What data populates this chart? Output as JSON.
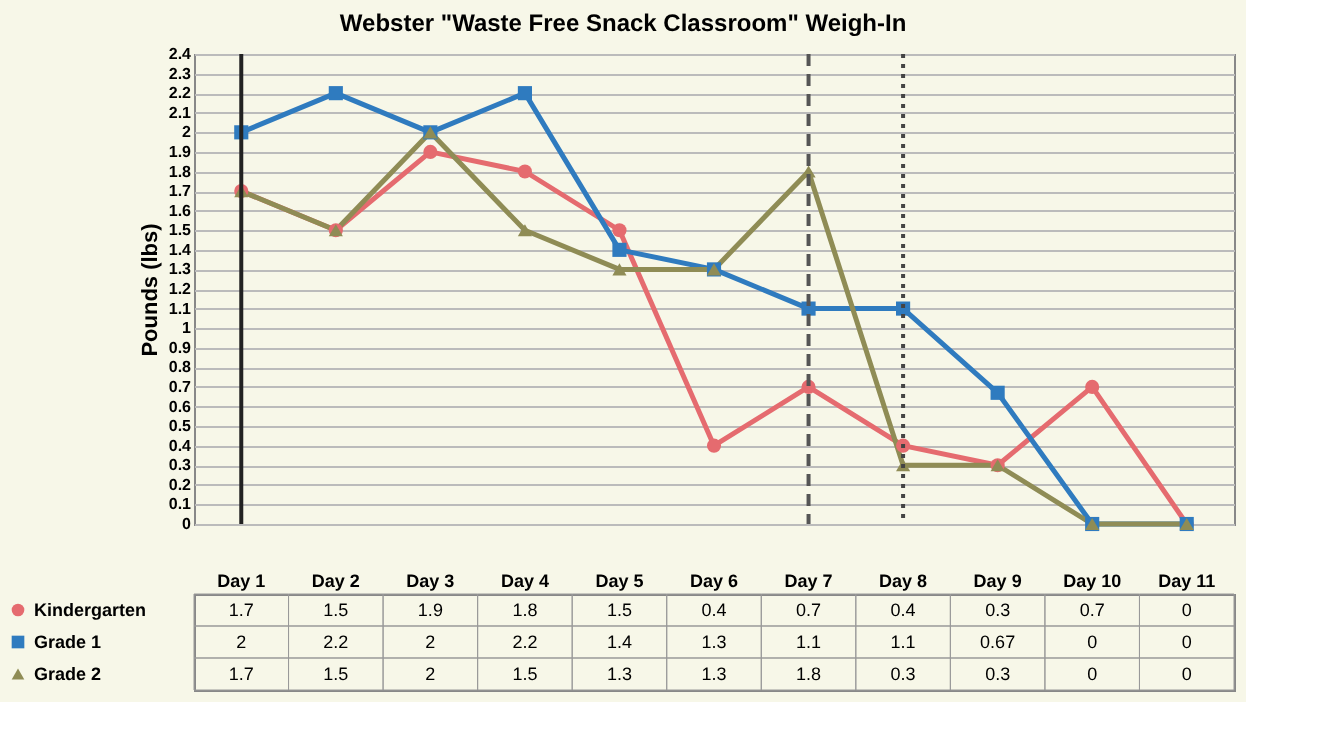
{
  "chart_data": {
    "type": "line",
    "title": "Webster \"Waste Free Snack Classroom\" Weigh-In",
    "ylabel": "Pounds (lbs)",
    "categories": [
      "Day 1",
      "Day 2",
      "Day 3",
      "Day 4",
      "Day 5",
      "Day 6",
      "Day 7",
      "Day 8",
      "Day 9",
      "Day 10",
      "Day 11"
    ],
    "series": [
      {
        "name": "Kindergarten",
        "color": "#e56b6f",
        "marker": "circle",
        "values": [
          1.7,
          1.5,
          1.9,
          1.8,
          1.5,
          0.4,
          0.7,
          0.4,
          0.3,
          0.7,
          0
        ]
      },
      {
        "name": "Grade 1",
        "color": "#2f7bbf",
        "marker": "square",
        "values": [
          2,
          2.2,
          2,
          2.2,
          1.4,
          1.3,
          1.1,
          1.1,
          0.67,
          0,
          0
        ]
      },
      {
        "name": "Grade 2",
        "color": "#8f8c55",
        "marker": "triangle",
        "values": [
          1.7,
          1.5,
          2,
          1.5,
          1.3,
          1.3,
          1.8,
          0.3,
          0.3,
          0,
          0
        ]
      }
    ],
    "ylim": [
      0,
      2.4
    ],
    "yticks": [
      0,
      0.1,
      0.2,
      0.3,
      0.4,
      0.5,
      0.6,
      0.7,
      0.8,
      0.9,
      1,
      1.1,
      1.2,
      1.3,
      1.4,
      1.5,
      1.6,
      1.7,
      1.8,
      1.9,
      2,
      2.1,
      2.2,
      2.3,
      2.4
    ],
    "ref_lines": [
      {
        "axis": "x",
        "value": "Day 1",
        "color": "#222222",
        "line_style": "solid"
      },
      {
        "axis": "x",
        "value": "Day 7",
        "color": "#555555",
        "line_style": "dashed"
      },
      {
        "axis": "x",
        "value": "Day 8",
        "color": "#444444",
        "line_style": "dotted"
      }
    ],
    "grid": "y",
    "data_labels": true,
    "legend": "bottom left",
    "line_style": "solid"
  }
}
